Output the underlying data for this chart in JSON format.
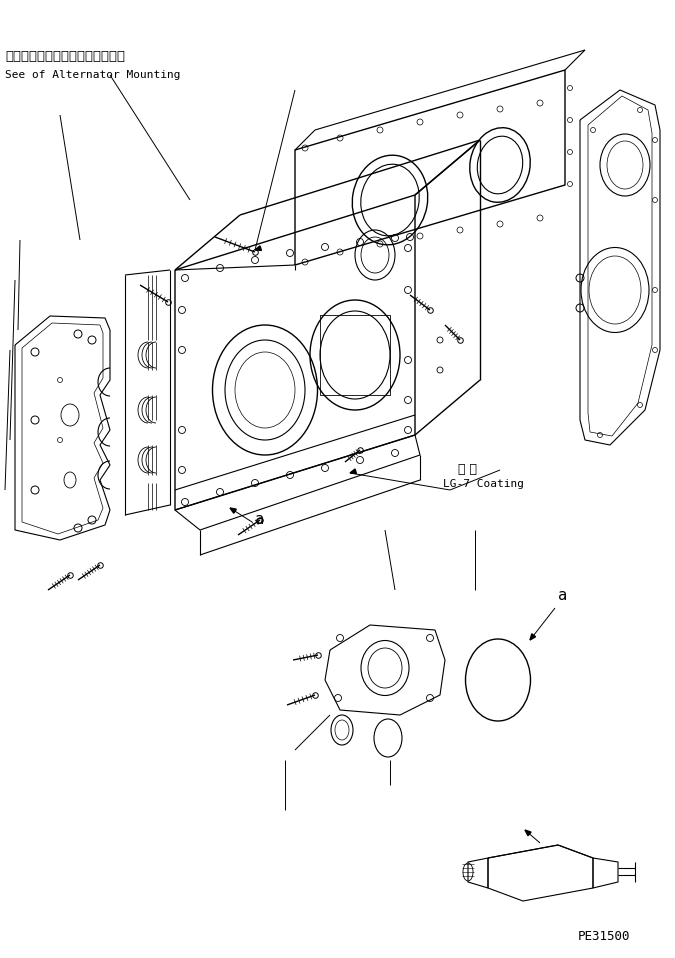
{
  "background_color": "#ffffff",
  "line_color": "#000000",
  "text_color": "#000000",
  "annotation_japanese": "オルタネータマウンティング参照",
  "annotation_english": "See of Alternator Mounting",
  "coating_japanese": "塗 布",
  "coating_english": "LG-7 Coating",
  "label_a": "a",
  "part_number": "PE31500",
  "figsize": [
    6.75,
    9.58
  ],
  "dpi": 100
}
